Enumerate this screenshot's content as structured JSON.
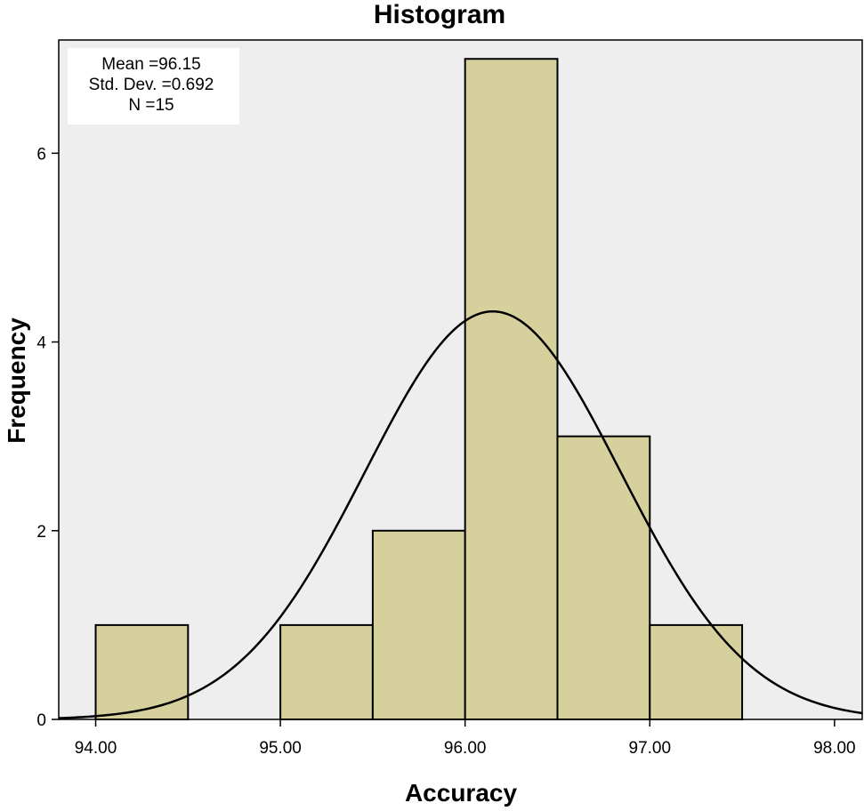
{
  "chart_data": {
    "type": "bar",
    "title": "Histogram",
    "xlabel": "Accuracy",
    "ylabel": "Frequency",
    "xlim": [
      93.8,
      98.15
    ],
    "ylim": [
      0,
      7.2
    ],
    "x_ticks": [
      94.0,
      95.0,
      96.0,
      97.0,
      98.0
    ],
    "x_tick_labels": [
      "94.00",
      "95.00",
      "96.00",
      "97.00",
      "98.00"
    ],
    "y_ticks": [
      0,
      2,
      4,
      6
    ],
    "y_tick_labels": [
      "0",
      "2",
      "4",
      "6"
    ],
    "bins": [
      {
        "start": 94.0,
        "end": 94.5,
        "count": 1
      },
      {
        "start": 94.5,
        "end": 95.0,
        "count": 0
      },
      {
        "start": 95.0,
        "end": 95.5,
        "count": 1
      },
      {
        "start": 95.5,
        "end": 96.0,
        "count": 2
      },
      {
        "start": 96.0,
        "end": 96.5,
        "count": 7
      },
      {
        "start": 96.5,
        "end": 97.0,
        "count": 3
      },
      {
        "start": 97.0,
        "end": 97.5,
        "count": 1
      }
    ],
    "normal_curve": {
      "mean": 96.15,
      "std_dev": 0.692,
      "n": 15,
      "bin_width": 0.5
    },
    "stats_box": {
      "lines": [
        "Mean =96.15",
        "Std. Dev. =0.692",
        "N =15"
      ],
      "placement": "top-left"
    },
    "grid": false,
    "colors": {
      "plot_background": "#eeeeee",
      "bar_fill": "#d6d19c",
      "bar_stroke": "#000000",
      "curve": "#000000",
      "stats_box_background": "#ffffff"
    }
  }
}
